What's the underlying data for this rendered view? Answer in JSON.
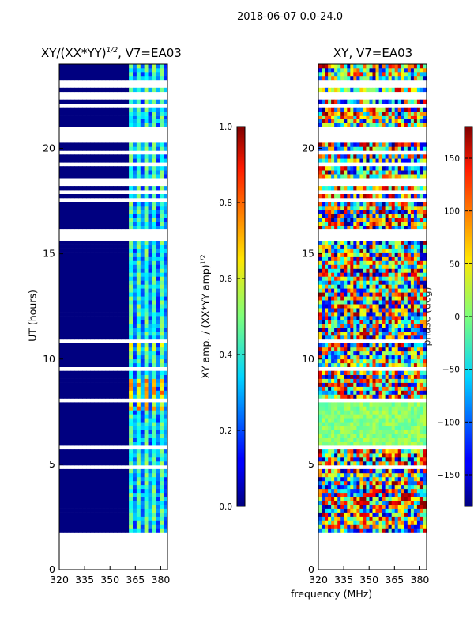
{
  "suptitle": "2018-06-07 0.0-24.0",
  "shared_xlabel": "frequency (MHz)",
  "chart_data": [
    {
      "type": "heatmap",
      "title_main": "XY/(XX*YY)",
      "title_sup": "1/2",
      "title_tail": ", V7=EA03",
      "xlabel": "",
      "ylabel": "UT (hours)",
      "xlim": [
        320,
        384
      ],
      "ylim": [
        0,
        24
      ],
      "xticks": [
        "320",
        "335",
        "350",
        "365",
        "380"
      ],
      "xtick_values": [
        320,
        335,
        350,
        365,
        380
      ],
      "yticks": [
        "0",
        "5",
        "10",
        "15",
        "20"
      ],
      "ytick_values": [
        0,
        5,
        10,
        15,
        20
      ],
      "data_ut_range": [
        1.6,
        24
      ],
      "data_gaps_ut": [
        [
          15.5,
          16.0
        ],
        [
          20.1,
          21.0
        ],
        [
          22.7,
          23.1
        ]
      ],
      "bright_channel_band_mhz": [
        361,
        384
      ],
      "colorbar": {
        "label_main": "XY amp. / (XX*YY amp)",
        "label_sup": "1/2",
        "range": [
          0.0,
          1.0
        ],
        "ticks": [
          "0.0",
          "0.2",
          "0.4",
          "0.6",
          "0.8",
          "1.0"
        ],
        "tick_values": [
          0.0,
          0.2,
          0.4,
          0.6,
          0.8,
          1.0
        ],
        "colormap": "jet"
      }
    },
    {
      "type": "heatmap",
      "title_main": "XY, V7=EA03",
      "xlabel": "frequency (MHz)",
      "ylabel": "",
      "xlim": [
        320,
        384
      ],
      "ylim": [
        0,
        24
      ],
      "xticks": [
        "320",
        "335",
        "350",
        "365",
        "380"
      ],
      "xtick_values": [
        320,
        335,
        350,
        365,
        380
      ],
      "yticks": [
        "0",
        "5",
        "10",
        "15",
        "20"
      ],
      "ytick_values": [
        0,
        5,
        10,
        15,
        20
      ],
      "data_ut_range": [
        1.6,
        24
      ],
      "colorbar": {
        "label": "phase (deg)",
        "range": [
          -180,
          180
        ],
        "ticks": [
          "−150",
          "−100",
          "−50",
          "0",
          "50",
          "100",
          "150"
        ],
        "tick_values": [
          -150,
          -100,
          -50,
          0,
          50,
          100,
          150
        ],
        "colormap": "jet"
      }
    }
  ]
}
